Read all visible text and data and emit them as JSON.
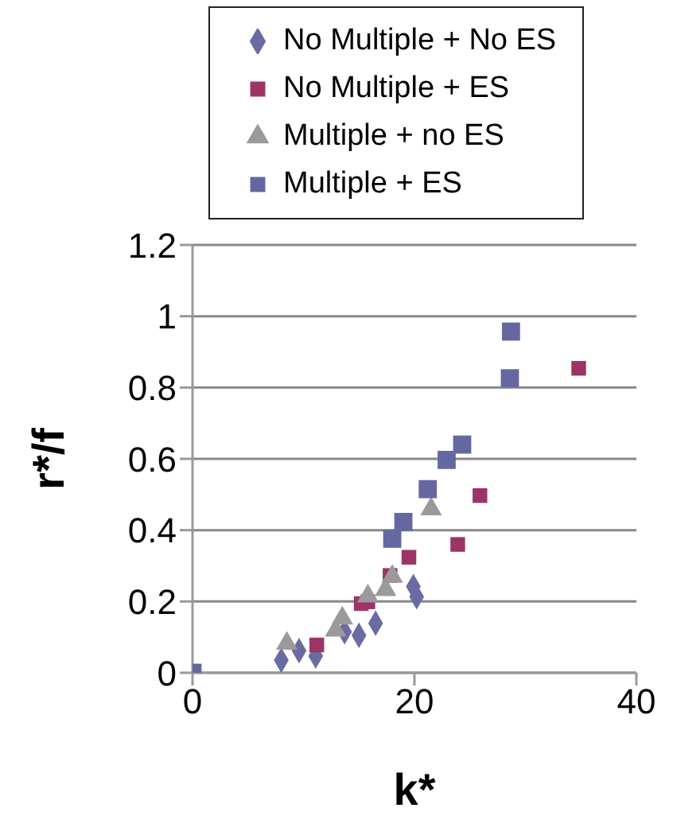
{
  "chart_data": {
    "type": "scatter",
    "xlabel": "k*",
    "ylabel": "r*/f",
    "xlim": [
      0,
      40
    ],
    "xticks": [
      0,
      20,
      40
    ],
    "ylim": [
      0,
      1.2
    ],
    "yticks": [
      0,
      0.2,
      0.4,
      0.6,
      0.8,
      1,
      1.2
    ],
    "grid": "y",
    "legend": "top",
    "series": [
      {
        "name": "No Multiple + No ES",
        "color": "#6b6ba3",
        "marker": "diamond",
        "x": [
          8.0,
          9.6,
          11.1,
          13.7,
          15.0,
          16.5,
          19.9,
          20.2
        ],
        "values": [
          0.035,
          0.062,
          0.047,
          0.115,
          0.105,
          0.139,
          0.242,
          0.213
        ]
      },
      {
        "name": "No Multiple + ES",
        "color": "#9c3566",
        "marker": "square",
        "x": [
          11.2,
          15.2,
          15.8,
          17.8,
          19.5,
          23.9,
          25.9,
          34.8
        ],
        "values": [
          0.078,
          0.194,
          0.199,
          0.273,
          0.324,
          0.36,
          0.497,
          0.854
        ]
      },
      {
        "name": "Multiple + no ES",
        "color": "#9a9a9a",
        "marker": "triangle",
        "x": [
          8.5,
          12.9,
          13.5,
          15.8,
          17.4,
          18.0,
          21.5
        ],
        "values": [
          0.082,
          0.119,
          0.153,
          0.215,
          0.233,
          0.27,
          0.459
        ]
      },
      {
        "name": "Multiple + ES",
        "color": "#6568a0",
        "marker": "square",
        "x": [
          0,
          18.0,
          19.0,
          21.2,
          22.9,
          24.3,
          28.6,
          28.7
        ],
        "values": [
          0,
          0.376,
          0.423,
          0.515,
          0.597,
          0.64,
          0.826,
          0.957
        ]
      }
    ]
  }
}
